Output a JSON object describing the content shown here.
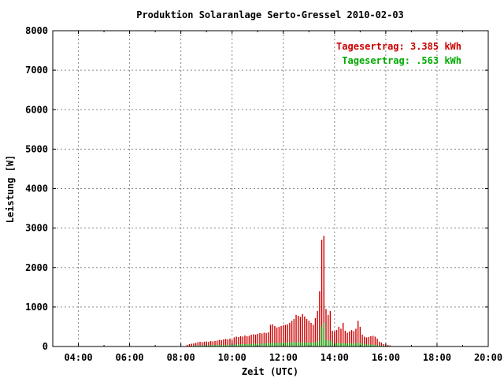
{
  "chart_data": {
    "type": "bar",
    "title": "Produktion Solaranlage Serto-Gressel 2010-02-03",
    "xlabel": "Zeit (UTC)",
    "ylabel": "Leistung [W]",
    "xlim": [
      "03:00",
      "20:00"
    ],
    "ylim": [
      0,
      8000
    ],
    "x_ticks": [
      "04:00",
      "06:00",
      "08:00",
      "10:00",
      "12:00",
      "14:00",
      "16:00",
      "18:00",
      "20:00"
    ],
    "y_ticks": [
      "0",
      "1000",
      "2000",
      "3000",
      "4000",
      "5000",
      "6000",
      "7000",
      "8000"
    ],
    "grid": true,
    "annotations": [
      {
        "text": "Tagesertrag: 3.385 kWh",
        "color": "#cc0000",
        "position": "top-right"
      },
      {
        "text": "Tagesertrag: .563 kWh",
        "color": "#00aa00",
        "position": "top-right"
      }
    ],
    "series": [
      {
        "color": "#cc0000",
        "x": [
          "08:15",
          "08:20",
          "08:25",
          "08:30",
          "08:35",
          "08:40",
          "08:45",
          "08:50",
          "08:55",
          "09:00",
          "09:05",
          "09:10",
          "09:15",
          "09:20",
          "09:25",
          "09:30",
          "09:35",
          "09:40",
          "09:45",
          "09:50",
          "09:55",
          "10:00",
          "10:05",
          "10:10",
          "10:15",
          "10:20",
          "10:25",
          "10:30",
          "10:35",
          "10:40",
          "10:45",
          "10:50",
          "10:55",
          "11:00",
          "11:05",
          "11:10",
          "11:15",
          "11:20",
          "11:25",
          "11:30",
          "11:35",
          "11:40",
          "11:45",
          "11:50",
          "11:55",
          "12:00",
          "12:05",
          "12:10",
          "12:15",
          "12:20",
          "12:25",
          "12:30",
          "12:35",
          "12:40",
          "12:45",
          "12:50",
          "12:55",
          "13:00",
          "13:05",
          "13:10",
          "13:15",
          "13:20",
          "13:25",
          "13:30",
          "13:35",
          "13:40",
          "13:45",
          "13:50",
          "13:55",
          "14:00",
          "14:05",
          "14:10",
          "14:15",
          "14:20",
          "14:25",
          "14:30",
          "14:35",
          "14:40",
          "14:45",
          "14:50",
          "14:55",
          "15:00",
          "15:05",
          "15:10",
          "15:15",
          "15:20",
          "15:25",
          "15:30",
          "15:35",
          "15:40",
          "15:45",
          "15:50",
          "15:55",
          "16:00",
          "16:05",
          "16:10"
        ],
        "values": [
          40,
          60,
          70,
          80,
          90,
          110,
          120,
          110,
          120,
          130,
          120,
          140,
          130,
          140,
          150,
          170,
          160,
          180,
          190,
          180,
          200,
          170,
          230,
          250,
          240,
          260,
          250,
          280,
          260,
          270,
          300,
          310,
          300,
          320,
          340,
          330,
          350,
          340,
          360,
          550,
          560,
          520,
          480,
          500,
          520,
          540,
          550,
          560,
          600,
          650,
          700,
          800,
          780,
          750,
          820,
          760,
          700,
          650,
          600,
          550,
          720,
          900,
          1400,
          2700,
          2800,
          950,
          800,
          900,
          400,
          380,
          420,
          500,
          450,
          600,
          400,
          350,
          380,
          420,
          390,
          450,
          650,
          500,
          300,
          250,
          230,
          240,
          260,
          270,
          250,
          200,
          120,
          100,
          60,
          50,
          40,
          30
        ]
      },
      {
        "color": "#00aa00",
        "x": [
          "08:15",
          "08:20",
          "08:25",
          "08:30",
          "08:35",
          "08:40",
          "08:45",
          "08:50",
          "08:55",
          "09:00",
          "09:05",
          "09:10",
          "09:15",
          "09:20",
          "09:25",
          "09:30",
          "09:35",
          "09:40",
          "09:45",
          "09:50",
          "09:55",
          "10:00",
          "10:05",
          "10:10",
          "10:15",
          "10:20",
          "10:25",
          "10:30",
          "10:35",
          "10:40",
          "10:45",
          "10:50",
          "10:55",
          "11:00",
          "11:05",
          "11:10",
          "11:15",
          "11:20",
          "11:25",
          "11:30",
          "11:35",
          "11:40",
          "11:45",
          "11:50",
          "11:55",
          "12:00",
          "12:05",
          "12:10",
          "12:15",
          "12:20",
          "12:25",
          "12:30",
          "12:35",
          "12:40",
          "12:45",
          "12:50",
          "12:55",
          "13:00",
          "13:05",
          "13:10",
          "13:15",
          "13:20",
          "13:25",
          "13:30",
          "13:35",
          "13:40",
          "13:45",
          "13:50",
          "13:55",
          "14:00",
          "14:05",
          "14:10",
          "14:15",
          "14:20",
          "14:25",
          "14:30",
          "14:35",
          "14:40",
          "14:45",
          "14:50",
          "14:55",
          "15:00",
          "15:05",
          "15:10",
          "15:15",
          "15:20",
          "15:25",
          "15:30",
          "15:35",
          "15:40",
          "15:45",
          "15:50",
          "15:55",
          "16:00",
          "16:05",
          "16:10"
        ],
        "values": [
          10,
          10,
          10,
          20,
          20,
          20,
          30,
          30,
          30,
          30,
          30,
          30,
          40,
          40,
          40,
          40,
          40,
          40,
          40,
          40,
          50,
          50,
          50,
          50,
          60,
          60,
          60,
          60,
          60,
          60,
          70,
          70,
          70,
          70,
          70,
          80,
          80,
          80,
          80,
          90,
          90,
          90,
          90,
          90,
          100,
          100,
          100,
          100,
          110,
          110,
          110,
          110,
          110,
          100,
          100,
          100,
          100,
          100,
          100,
          100,
          110,
          120,
          150,
          500,
          600,
          180,
          150,
          150,
          80,
          80,
          80,
          90,
          90,
          90,
          80,
          80,
          80,
          80,
          80,
          80,
          100,
          90,
          70,
          60,
          50,
          50,
          50,
          50,
          40,
          40,
          30,
          20,
          20,
          10,
          10,
          10
        ]
      }
    ]
  }
}
